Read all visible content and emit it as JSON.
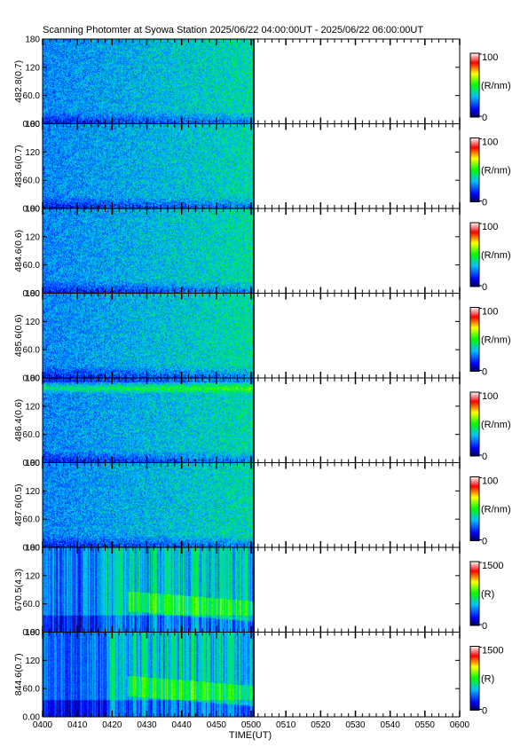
{
  "chart_data": {
    "type": "heatmap",
    "title": "Scanning Photomter at Syowa Station 2025/06/22 04:00:00UT - 2025/06/22 06:00:00UT",
    "xlabel": "TIME(UT)",
    "x_ticks": [
      "0400",
      "0410",
      "0420",
      "0430",
      "0440",
      "0450",
      "0500",
      "0510",
      "0520",
      "0530",
      "0540",
      "0550",
      "0600"
    ],
    "xlim": [
      "0400",
      "0600"
    ],
    "data_coverage_end": "0501",
    "y_ticks": [
      "0.00",
      "60.0",
      "120",
      "180"
    ],
    "ylim": [
      0,
      180
    ],
    "colorscale": [
      "#000055",
      "#0000ff",
      "#00c0ff",
      "#00ff00",
      "#ffff00",
      "#ff0000",
      "#ffffff"
    ],
    "panels": [
      {
        "ylabel": "482.8(0.7)",
        "colorbar_max": "100",
        "colorbar_min": "0",
        "colorbar_unit": "(R/nm)",
        "pattern": "uniform",
        "intensity": 0.36
      },
      {
        "ylabel": "483.6(0.7)",
        "colorbar_max": "100",
        "colorbar_min": "0",
        "colorbar_unit": "(R/nm)",
        "pattern": "uniform",
        "intensity": 0.34
      },
      {
        "ylabel": "484.6(0.6)",
        "colorbar_max": "100",
        "colorbar_min": "0",
        "colorbar_unit": "(R/nm)",
        "pattern": "uniform",
        "intensity": 0.37
      },
      {
        "ylabel": "485.6(0.6)",
        "colorbar_max": "100",
        "colorbar_min": "0",
        "colorbar_unit": "(R/nm)",
        "pattern": "uniform",
        "intensity": 0.38
      },
      {
        "ylabel": "486.4(0.6)",
        "colorbar_max": "100",
        "colorbar_min": "0",
        "colorbar_unit": "(R/nm)",
        "pattern": "band",
        "intensity": 0.35
      },
      {
        "ylabel": "487.6(0.5)",
        "colorbar_max": "100",
        "colorbar_min": "0",
        "colorbar_unit": "(R/nm)",
        "pattern": "uniform",
        "intensity": 0.34
      },
      {
        "ylabel": "670.5(4.3)",
        "colorbar_max": "1500",
        "colorbar_min": "0",
        "colorbar_unit": "(R)",
        "pattern": "aurora",
        "intensity": 0.4
      },
      {
        "ylabel": "844.6(0.7)",
        "colorbar_max": "1500",
        "colorbar_min": "0",
        "colorbar_unit": "(R)",
        "pattern": "aurora2",
        "intensity": 0.4
      }
    ]
  }
}
